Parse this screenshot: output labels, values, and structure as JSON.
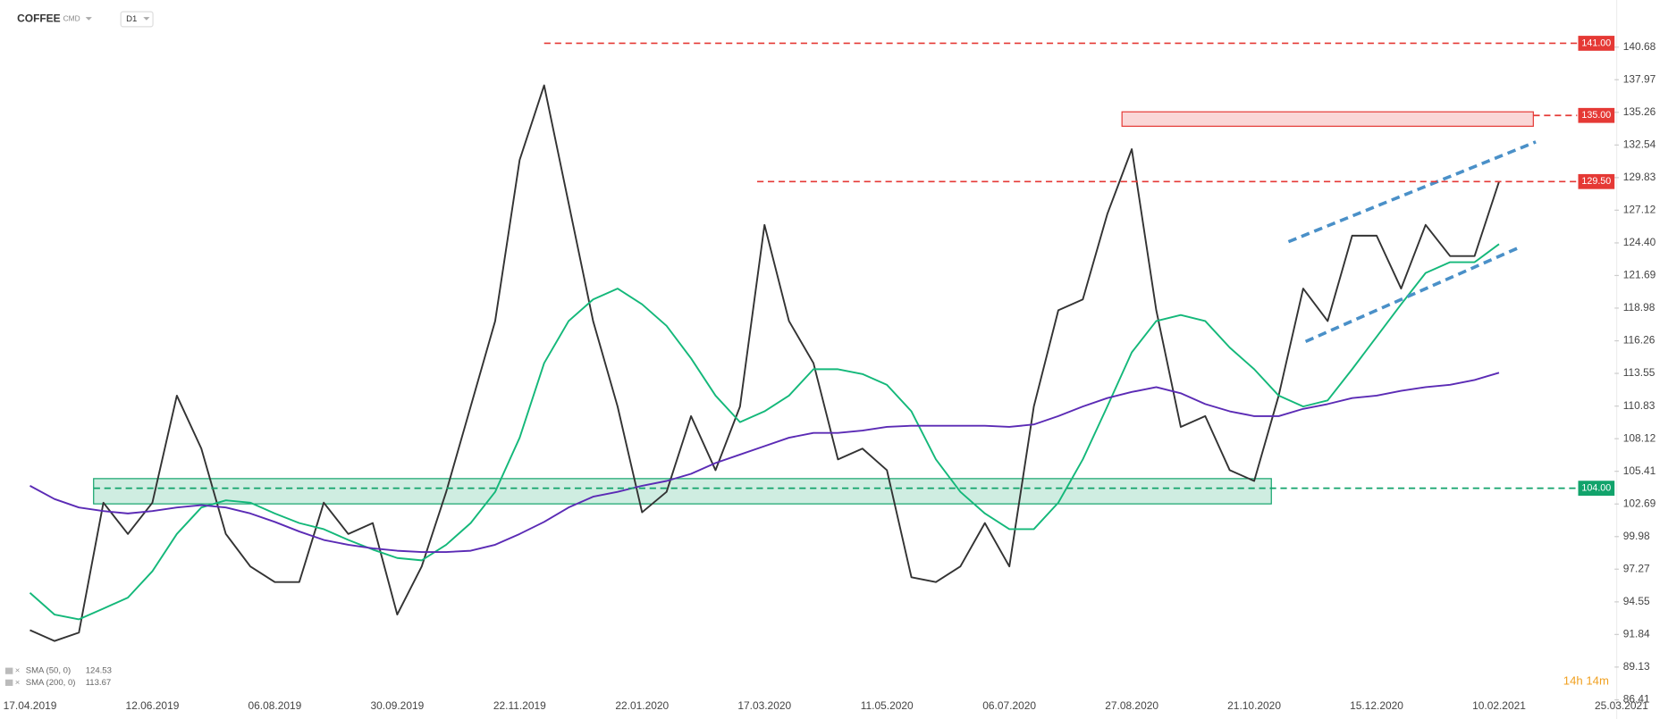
{
  "chart_data": {
    "type": "line",
    "title": "COFFEE",
    "subtitle": "CMD",
    "timeframe": "D1",
    "countdown": "14h 14m",
    "categories": [
      "17.04.2019",
      null,
      null,
      null,
      null,
      "12.06.2019",
      null,
      null,
      null,
      null,
      "06.08.2019",
      null,
      null,
      null,
      null,
      "30.09.2019",
      null,
      null,
      null,
      null,
      "22.11.2019",
      null,
      null,
      null,
      null,
      "22.01.2020",
      null,
      null,
      null,
      null,
      "17.03.2020",
      null,
      null,
      null,
      null,
      "11.05.2020",
      null,
      null,
      null,
      null,
      "06.07.2020",
      null,
      null,
      null,
      null,
      "27.08.2020",
      null,
      null,
      null,
      null,
      "21.10.2020",
      null,
      null,
      null,
      null,
      "15.12.2020",
      null,
      null,
      null,
      null,
      "10.02.2021",
      null,
      null,
      null,
      null,
      "25.03.2021"
    ],
    "series": [
      {
        "color": "#333333",
        "width": 1.6,
        "values": [
          92.2,
          91.3,
          92,
          102.8,
          100.2,
          102.8,
          111.7,
          107.3,
          100.2,
          97.5,
          96.2,
          96.2,
          102.8,
          100.2,
          101.1,
          93.5,
          97.5,
          103.7,
          110.8,
          117.9,
          131.3,
          137.5,
          127.7,
          117.9,
          110.8,
          102,
          103.7,
          110,
          105.5,
          110.8,
          125.9,
          117.9,
          114.4,
          106.4,
          107.3,
          105.5,
          96.6,
          96.2,
          97.5,
          101.1,
          97.5,
          110.8,
          118.8,
          119.7,
          126.8,
          132.2,
          118.8,
          109.1,
          110,
          105.5,
          104.6,
          111.7,
          120.6,
          117.9,
          125,
          125,
          120.6,
          125.9,
          123.3,
          123.3,
          129.5,
          null,
          null,
          null,
          null,
          null
        ]
      },
      {
        "name": "SMA (50, 0)",
        "last": 124.53,
        "color": "#14b87a",
        "width": 1.6,
        "values": [
          95.3,
          93.5,
          93.1,
          94,
          94.9,
          97.1,
          100.2,
          102.4,
          103,
          102.8,
          101.9,
          101.1,
          100.6,
          99.7,
          98.9,
          98.2,
          98,
          99.3,
          101.1,
          103.7,
          108.2,
          114.4,
          117.9,
          119.7,
          120.6,
          119.3,
          117.5,
          114.8,
          111.7,
          109.5,
          110.4,
          111.7,
          113.9,
          113.9,
          113.5,
          112.6,
          110.4,
          106.4,
          103.7,
          101.9,
          100.6,
          100.6,
          102.8,
          106.4,
          110.8,
          115.3,
          117.9,
          118.4,
          117.9,
          115.7,
          113.9,
          111.7,
          110.8,
          111.3,
          113.9,
          116.6,
          119.3,
          121.9,
          122.8,
          122.8,
          124.3,
          null,
          null,
          null,
          null,
          null
        ]
      },
      {
        "name": "SMA (200, 0)",
        "last": 113.67,
        "color": "#5b2bb5",
        "width": 1.6,
        "values": [
          104.2,
          103.1,
          102.4,
          102.1,
          101.9,
          102.1,
          102.4,
          102.6,
          102.4,
          101.9,
          101.2,
          100.4,
          99.7,
          99.3,
          99,
          98.8,
          98.7,
          98.7,
          98.8,
          99.3,
          100.2,
          101.2,
          102.4,
          103.3,
          103.7,
          104.2,
          104.6,
          105.2,
          106.1,
          106.8,
          107.5,
          108.2,
          108.6,
          108.6,
          108.8,
          109.1,
          109.2,
          109.2,
          109.2,
          109.2,
          109.1,
          109.3,
          110,
          110.8,
          111.5,
          112,
          112.4,
          111.9,
          111,
          110.4,
          110,
          110,
          110.6,
          111,
          111.5,
          111.7,
          112.1,
          112.4,
          112.6,
          113,
          113.6,
          null,
          null,
          null,
          null,
          null
        ]
      }
    ],
    "ylim": [
      86.41,
      142.2
    ],
    "yticks": [
      86.41,
      89.13,
      91.84,
      94.55,
      97.27,
      99.98,
      102.69,
      105.41,
      108.12,
      110.83,
      113.55,
      116.26,
      118.98,
      121.69,
      {
        "value": 124.4,
        "label": "124.40"
      },
      127.12,
      129.83,
      132.54,
      135.26,
      137.97,
      140.68
    ],
    "levels": [
      {
        "value": 141,
        "label": "141.00",
        "color": "#e53935",
        "from": 21
      },
      {
        "value": 135,
        "label": "135.00",
        "color": "#e53935",
        "from": 61.4
      },
      {
        "value": 129.5,
        "label": "129.50",
        "color": "#e53935",
        "from": 29.7
      },
      {
        "value": 104,
        "label": "104.00",
        "color": "#11a36b",
        "from": 2.6
      }
    ],
    "zones": [
      {
        "ylim": [
          134.1,
          135.3
        ],
        "xlim": [
          44.6,
          61.4
        ],
        "color": "#e53935"
      },
      {
        "ylim": [
          102.7,
          104.8
        ],
        "xlim": [
          2.6,
          50.7
        ],
        "color": "#11a36b"
      }
    ],
    "channel": {
      "color": "#4a90c8",
      "lines": [
        {
          "x": [
            51.4,
            61.5
          ],
          "y": [
            124.5,
            132.8
          ]
        },
        {
          "x": [
            52.1,
            60.8
          ],
          "y": [
            116.2,
            124.0
          ]
        }
      ]
    }
  }
}
